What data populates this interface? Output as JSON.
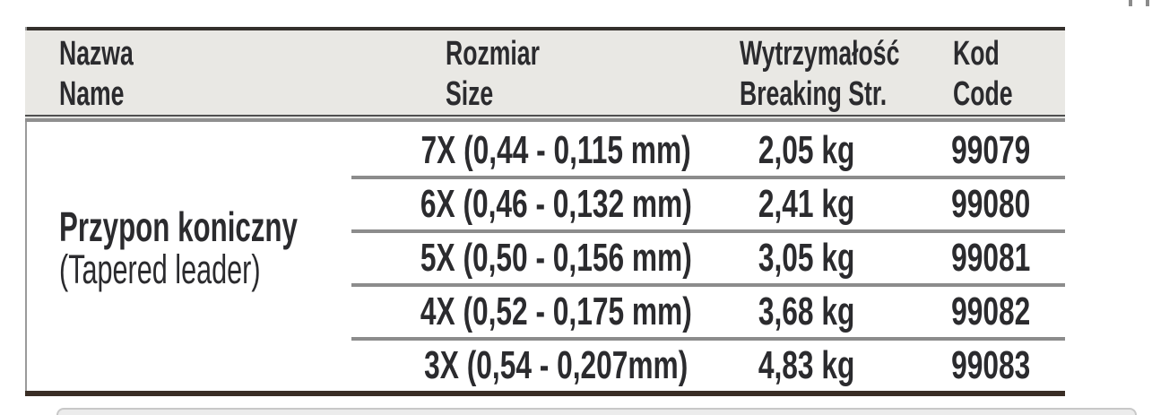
{
  "table": {
    "header": {
      "columns": [
        {
          "pl": "Nazwa",
          "en": "Name"
        },
        {
          "pl": "Rozmiar",
          "en": "Size"
        },
        {
          "pl": "Wytrzymałość",
          "en": "Breaking Str."
        },
        {
          "pl": "Kod",
          "en": "Code"
        }
      ]
    },
    "product": {
      "pl": "Przypon koniczny",
      "en": "(Tapered leader)"
    },
    "rows": [
      {
        "size": "7X (0,44 - 0,115 mm)",
        "breaking": "2,05 kg",
        "code": "99079"
      },
      {
        "size": "6X (0,46 - 0,132 mm)",
        "breaking": "2,41 kg",
        "code": "99080"
      },
      {
        "size": "5X (0,50 - 0,156 mm)",
        "breaking": "3,05 kg",
        "code": "99081"
      },
      {
        "size": "4X (0,52 - 0,175 mm)",
        "breaking": "3,68 kg",
        "code": "99082"
      },
      {
        "size": "3X (0,54 - 0,207mm)",
        "breaking": "4,83 kg",
        "code": "99083"
      }
    ]
  },
  "colors": {
    "header_bg": "#e9e8e4",
    "text": "#2b2b2e",
    "top_border": "#34302c",
    "bottom_border": "#3a2e26",
    "row_separator": "#8c8c8c",
    "header_rule": "#8f8f8f",
    "next_section_bar": "#ececec"
  }
}
